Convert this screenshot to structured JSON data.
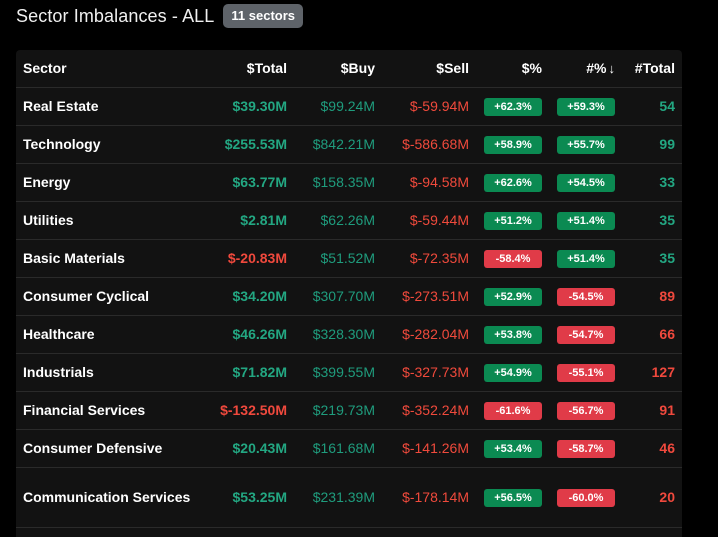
{
  "header": {
    "title": "Sector Imbalances - ALL",
    "badge": "11 sectors"
  },
  "colors": {
    "positive_text": "#23a782",
    "negative_text": "#f0493d",
    "positive_pill": "#0b8a52",
    "negative_pill": "#e03b48"
  },
  "table": {
    "columns": {
      "sector": "Sector",
      "total": "$Total",
      "buy": "$Buy",
      "sell": "$Sell",
      "pct": "$%",
      "count_pct": "#%",
      "count_total": "#Total"
    },
    "sort_icon": "arrow-down-icon",
    "rows": [
      {
        "sector": "Real Estate",
        "total": "$39.30M",
        "total_sign": "pos",
        "buy": "$99.24M",
        "sell": "$-59.94M",
        "pct": "+62.3%",
        "pct_sign": "pos",
        "count_pct": "+59.3%",
        "count_pct_sign": "pos",
        "count_total": "54",
        "count_sign": "pos"
      },
      {
        "sector": "Technology",
        "total": "$255.53M",
        "total_sign": "pos",
        "buy": "$842.21M",
        "sell": "$-586.68M",
        "pct": "+58.9%",
        "pct_sign": "pos",
        "count_pct": "+55.7%",
        "count_pct_sign": "pos",
        "count_total": "99",
        "count_sign": "pos"
      },
      {
        "sector": "Energy",
        "total": "$63.77M",
        "total_sign": "pos",
        "buy": "$158.35M",
        "sell": "$-94.58M",
        "pct": "+62.6%",
        "pct_sign": "pos",
        "count_pct": "+54.5%",
        "count_pct_sign": "pos",
        "count_total": "33",
        "count_sign": "pos"
      },
      {
        "sector": "Utilities",
        "total": "$2.81M",
        "total_sign": "pos",
        "buy": "$62.26M",
        "sell": "$-59.44M",
        "pct": "+51.2%",
        "pct_sign": "pos",
        "count_pct": "+51.4%",
        "count_pct_sign": "pos",
        "count_total": "35",
        "count_sign": "pos"
      },
      {
        "sector": "Basic Materials",
        "total": "$-20.83M",
        "total_sign": "neg",
        "buy": "$51.52M",
        "sell": "$-72.35M",
        "pct": "-58.4%",
        "pct_sign": "neg",
        "count_pct": "+51.4%",
        "count_pct_sign": "pos",
        "count_total": "35",
        "count_sign": "pos"
      },
      {
        "sector": "Consumer Cyclical",
        "total": "$34.20M",
        "total_sign": "pos",
        "buy": "$307.70M",
        "sell": "$-273.51M",
        "pct": "+52.9%",
        "pct_sign": "pos",
        "count_pct": "-54.5%",
        "count_pct_sign": "neg",
        "count_total": "89",
        "count_sign": "neg"
      },
      {
        "sector": "Healthcare",
        "total": "$46.26M",
        "total_sign": "pos",
        "buy": "$328.30M",
        "sell": "$-282.04M",
        "pct": "+53.8%",
        "pct_sign": "pos",
        "count_pct": "-54.7%",
        "count_pct_sign": "neg",
        "count_total": "66",
        "count_sign": "neg"
      },
      {
        "sector": "Industrials",
        "total": "$71.82M",
        "total_sign": "pos",
        "buy": "$399.55M",
        "sell": "$-327.73M",
        "pct": "+54.9%",
        "pct_sign": "pos",
        "count_pct": "-55.1%",
        "count_pct_sign": "neg",
        "count_total": "127",
        "count_sign": "neg"
      },
      {
        "sector": "Financial Services",
        "total": "$-132.50M",
        "total_sign": "neg",
        "buy": "$219.73M",
        "sell": "$-352.24M",
        "pct": "-61.6%",
        "pct_sign": "neg",
        "count_pct": "-56.7%",
        "count_pct_sign": "neg",
        "count_total": "91",
        "count_sign": "neg"
      },
      {
        "sector": "Consumer Defensive",
        "total": "$20.43M",
        "total_sign": "pos",
        "buy": "$161.68M",
        "sell": "$-141.26M",
        "pct": "+53.4%",
        "pct_sign": "pos",
        "count_pct": "-58.7%",
        "count_pct_sign": "neg",
        "count_total": "46",
        "count_sign": "neg"
      },
      {
        "sector": "Communication Services",
        "total": "$53.25M",
        "total_sign": "pos",
        "buy": "$231.39M",
        "sell": "$-178.14M",
        "pct": "+56.5%",
        "pct_sign": "pos",
        "count_pct": "-60.0%",
        "count_pct_sign": "neg",
        "count_total": "20",
        "count_sign": "neg"
      }
    ]
  }
}
